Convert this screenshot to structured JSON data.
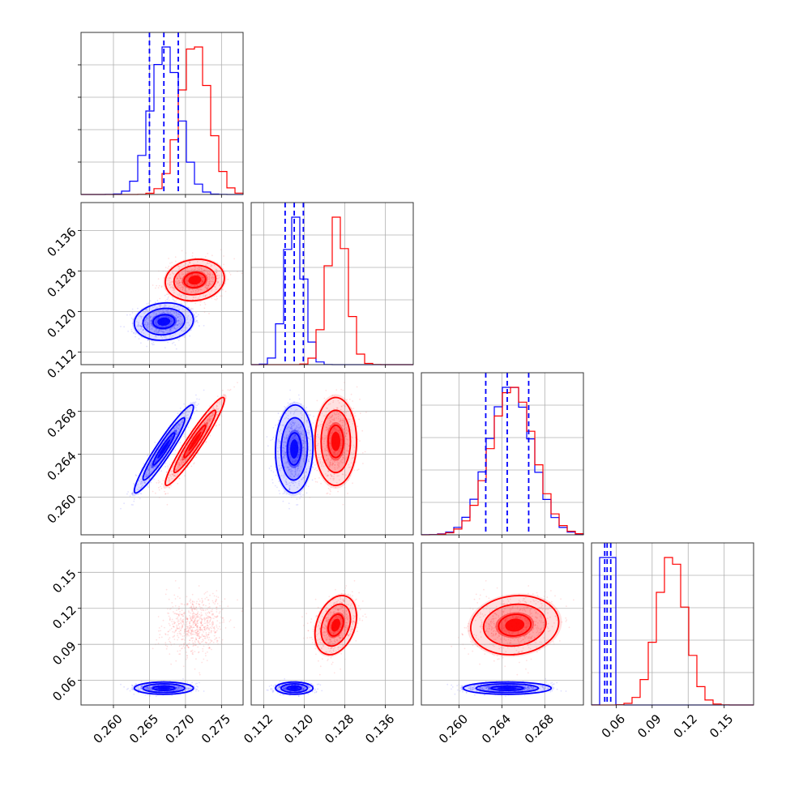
{
  "chart_data": {
    "type": "corner",
    "params": [
      "p0",
      "p1",
      "p2",
      "p3"
    ],
    "axis_ranges": [
      [
        0.2555,
        0.278
      ],
      [
        0.1095,
        0.1415
      ],
      [
        0.2565,
        0.2716
      ],
      [
        0.0395,
        0.1745
      ]
    ],
    "axis_ticks": [
      [
        0.26,
        0.265,
        0.27,
        0.275
      ],
      [
        0.112,
        0.12,
        0.128,
        0.136
      ],
      [
        0.26,
        0.264,
        0.268
      ],
      [
        0.06,
        0.09,
        0.12,
        0.15
      ]
    ],
    "tick_labels": [
      [
        "0.260",
        "0.265",
        "0.270",
        "0.275"
      ],
      [
        "0.112",
        "0.120",
        "0.128",
        "0.136"
      ],
      [
        "0.260",
        "0.264",
        "0.268"
      ],
      [
        "0.06",
        "0.09",
        "0.12",
        "0.15"
      ]
    ],
    "grid": true,
    "series": [
      {
        "color": "#0000ff",
        "means": [
          0.267,
          0.118,
          0.2645,
          0.0535
        ],
        "stds": [
          0.002,
          0.0018,
          0.002,
          0.0025
        ],
        "correlations": [
          [
            0,
            2,
            0.95
          ],
          [
            0,
            1,
            0.1
          ],
          [
            1,
            2,
            0.05
          ]
        ],
        "quantiles": [
          [
            0.265,
            0.267,
            0.269
          ],
          [
            0.1162,
            0.118,
            0.1198
          ],
          [
            0.2625,
            0.2645,
            0.2665
          ],
          [
            0.0505,
            0.0525,
            0.0555
          ]
        ],
        "hist_peaks": [
          0.2672,
          0.118,
          0.2648,
          0.053
        ]
      },
      {
        "color": "#ff0000",
        "means": [
          0.2713,
          0.1262,
          0.2652,
          0.106
        ],
        "stds": [
          0.002,
          0.002,
          0.002,
          0.012
        ],
        "correlations": [
          [
            0,
            2,
            0.95
          ],
          [
            0,
            1,
            0.1
          ],
          [
            1,
            3,
            0.3
          ],
          [
            2,
            3,
            0.1
          ]
        ],
        "quantiles": [],
        "hist_peaks": [
          0.2713,
          0.1265,
          0.265,
          0.106
        ]
      }
    ]
  }
}
